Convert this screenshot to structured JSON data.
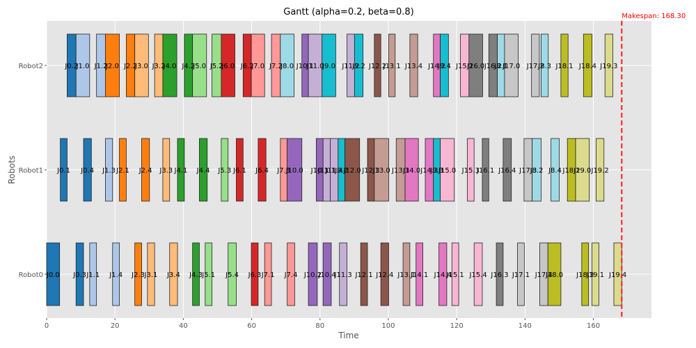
{
  "chart_data": {
    "type": "gantt",
    "title": "Gantt (alpha=0.2, beta=0.8)",
    "xlabel": "Time",
    "ylabel": "Robots",
    "xlim": [
      0,
      177
    ],
    "x_ticks": [
      0,
      20,
      40,
      60,
      80,
      100,
      120,
      140,
      160
    ],
    "grid": true,
    "robots": [
      "Robot0",
      "Robot1",
      "Robot2"
    ],
    "makespan": 168.3,
    "makespan_label": "Makespan: 168.30",
    "job_colors": {
      "J0": "#1f77b4",
      "J1": "#aec7e8",
      "J2": "#ff7f0e",
      "J3": "#ffbb78",
      "J4": "#2ca02c",
      "J5": "#98df8a",
      "J6": "#d62728",
      "J7": "#ff9896",
      "J8": "#9edae5",
      "J9": "#17becf",
      "J10": "#9467bd",
      "J11": "#c5b0d5",
      "J12": "#8c564b",
      "J13": "#c49c94",
      "J14": "#e377c2",
      "J15": "#f7b6d2",
      "J16": "#7f7f7f",
      "J17": "#c7c7c7",
      "J18": "#bcbd22",
      "J19": "#dbdb8d"
    },
    "tasks": [
      {
        "robot": "Robot0",
        "label": "J0.0",
        "job": "J0",
        "start": 0.0,
        "end": 3.8
      },
      {
        "robot": "Robot0",
        "label": "J0.3",
        "job": "J0",
        "start": 8.6,
        "end": 10.8
      },
      {
        "robot": "Robot0",
        "label": "J1.1",
        "job": "J1",
        "start": 12.6,
        "end": 14.6
      },
      {
        "robot": "Robot0",
        "label": "J1.4",
        "job": "J1",
        "start": 19.3,
        "end": 21.3
      },
      {
        "robot": "Robot0",
        "label": "J2.3",
        "job": "J2",
        "start": 25.8,
        "end": 27.8
      },
      {
        "robot": "Robot0",
        "label": "J3.1",
        "job": "J3",
        "start": 29.5,
        "end": 31.6
      },
      {
        "robot": "Robot0",
        "label": "J3.4",
        "job": "J3",
        "start": 36.0,
        "end": 38.3
      },
      {
        "robot": "Robot0",
        "label": "J4.3",
        "job": "J4",
        "start": 42.7,
        "end": 44.7
      },
      {
        "robot": "Robot0",
        "label": "J5.1",
        "job": "J5",
        "start": 46.4,
        "end": 48.4
      },
      {
        "robot": "Robot0",
        "label": "J5.4",
        "job": "J5",
        "start": 53.1,
        "end": 55.5
      },
      {
        "robot": "Robot0",
        "label": "J6.3",
        "job": "J6",
        "start": 59.9,
        "end": 61.9
      },
      {
        "robot": "Robot0",
        "label": "J7.1",
        "job": "J7",
        "start": 63.8,
        "end": 65.8
      },
      {
        "robot": "Robot0",
        "label": "J7.4",
        "job": "J7",
        "start": 70.4,
        "end": 72.6
      },
      {
        "robot": "Robot0",
        "label": "J10.2",
        "job": "J10",
        "start": 76.6,
        "end": 79.2
      },
      {
        "robot": "Robot0",
        "label": "J10.4",
        "job": "J10",
        "start": 80.9,
        "end": 83.3
      },
      {
        "robot": "Robot0",
        "label": "J11.3",
        "job": "J11",
        "start": 85.7,
        "end": 87.9
      },
      {
        "robot": "Robot0",
        "label": "J12.1",
        "job": "J12",
        "start": 91.9,
        "end": 93.9
      },
      {
        "robot": "Robot0",
        "label": "J12.4",
        "job": "J12",
        "start": 97.8,
        "end": 100.1
      },
      {
        "robot": "Robot0",
        "label": "J13.1",
        "job": "J13",
        "start": 104.3,
        "end": 106.3
      },
      {
        "robot": "Robot0",
        "label": "J14.1",
        "job": "J14",
        "start": 108.1,
        "end": 110.1
      },
      {
        "robot": "Robot0",
        "label": "J14.4",
        "job": "J14",
        "start": 114.8,
        "end": 117.1
      },
      {
        "robot": "Robot0",
        "label": "J15.1",
        "job": "J15",
        "start": 118.6,
        "end": 120.6
      },
      {
        "robot": "Robot0",
        "label": "J15.4",
        "job": "J15",
        "start": 125.1,
        "end": 127.5
      },
      {
        "robot": "Robot0",
        "label": "J16.3",
        "job": "J16",
        "start": 131.6,
        "end": 133.6
      },
      {
        "robot": "Robot0",
        "label": "J17.1",
        "job": "J17",
        "start": 137.8,
        "end": 139.8
      },
      {
        "robot": "Robot0",
        "label": "J17.4",
        "job": "J17",
        "start": 144.3,
        "end": 146.7
      },
      {
        "robot": "Robot0",
        "label": "J18.0",
        "job": "J18",
        "start": 146.7,
        "end": 150.5
      },
      {
        "robot": "Robot0",
        "label": "J18.3",
        "job": "J18",
        "start": 156.6,
        "end": 158.6
      },
      {
        "robot": "Robot0",
        "label": "J19.1",
        "job": "J19",
        "start": 159.6,
        "end": 161.6
      },
      {
        "robot": "Robot0",
        "label": "J19.4",
        "job": "J19",
        "start": 166.0,
        "end": 168.3
      },
      {
        "robot": "Robot1",
        "label": "J0.1",
        "job": "J0",
        "start": 4.0,
        "end": 6.0
      },
      {
        "robot": "Robot1",
        "label": "J0.4",
        "job": "J0",
        "start": 10.8,
        "end": 13.1
      },
      {
        "robot": "Robot1",
        "label": "J1.3",
        "job": "J1",
        "start": 17.2,
        "end": 19.3
      },
      {
        "robot": "Robot1",
        "label": "J2.1",
        "job": "J2",
        "start": 21.3,
        "end": 23.3
      },
      {
        "robot": "Robot1",
        "label": "J2.4",
        "job": "J2",
        "start": 27.8,
        "end": 30.1
      },
      {
        "robot": "Robot1",
        "label": "J3.3",
        "job": "J3",
        "start": 34.0,
        "end": 36.0
      },
      {
        "robot": "Robot1",
        "label": "J4.1",
        "job": "J4",
        "start": 38.3,
        "end": 40.3
      },
      {
        "robot": "Robot1",
        "label": "J4.4",
        "job": "J4",
        "start": 44.7,
        "end": 47.0
      },
      {
        "robot": "Robot1",
        "label": "J5.3",
        "job": "J5",
        "start": 51.1,
        "end": 53.1
      },
      {
        "robot": "Robot1",
        "label": "J6.1",
        "job": "J6",
        "start": 55.5,
        "end": 57.5
      },
      {
        "robot": "Robot1",
        "label": "J6.4",
        "job": "J6",
        "start": 61.9,
        "end": 64.2
      },
      {
        "robot": "Robot1",
        "label": "J7.3",
        "job": "J7",
        "start": 68.4,
        "end": 70.4
      },
      {
        "robot": "Robot1",
        "label": "J10.0",
        "job": "J10",
        "start": 70.4,
        "end": 74.7
      },
      {
        "robot": "Robot1",
        "label": "J10.3",
        "job": "J10",
        "start": 78.9,
        "end": 80.9
      },
      {
        "robot": "Robot1",
        "label": "J11.1",
        "job": "J11",
        "start": 80.9,
        "end": 83.0
      },
      {
        "robot": "Robot1",
        "label": "J11.4",
        "job": "J11",
        "start": 83.0,
        "end": 85.3
      },
      {
        "robot": "Robot1",
        "label": "J9.2",
        "job": "J9",
        "start": 85.3,
        "end": 87.3
      },
      {
        "robot": "Robot1",
        "label": "J12.0",
        "job": "J12",
        "start": 87.3,
        "end": 91.6
      },
      {
        "robot": "Robot1",
        "label": "J12.3",
        "job": "J12",
        "start": 93.9,
        "end": 95.9
      },
      {
        "robot": "Robot1",
        "label": "J13.0",
        "job": "J13",
        "start": 95.9,
        "end": 100.1
      },
      {
        "robot": "Robot1",
        "label": "J13.3",
        "job": "J13",
        "start": 102.3,
        "end": 104.9
      },
      {
        "robot": "Robot1",
        "label": "J14.0",
        "job": "J14",
        "start": 104.9,
        "end": 108.8
      },
      {
        "robot": "Robot1",
        "label": "J14.3",
        "job": "J14",
        "start": 110.8,
        "end": 113.2
      },
      {
        "robot": "Robot1",
        "label": "J9.3",
        "job": "J9",
        "start": 113.2,
        "end": 115.2
      },
      {
        "robot": "Robot1",
        "label": "J15.0",
        "job": "J15",
        "start": 115.2,
        "end": 119.3
      },
      {
        "robot": "Robot1",
        "label": "J15.3",
        "job": "J15",
        "start": 123.1,
        "end": 125.1
      },
      {
        "robot": "Robot1",
        "label": "J16.1",
        "job": "J16",
        "start": 127.5,
        "end": 129.4
      },
      {
        "robot": "Robot1",
        "label": "J16.4",
        "job": "J16",
        "start": 133.6,
        "end": 136.0
      },
      {
        "robot": "Robot1",
        "label": "J17.3",
        "job": "J17",
        "start": 139.7,
        "end": 142.1
      },
      {
        "robot": "Robot1",
        "label": "J8.2",
        "job": "J8",
        "start": 142.1,
        "end": 144.7
      },
      {
        "robot": "Robot1",
        "label": "J8.4",
        "job": "J8",
        "start": 147.6,
        "end": 150.0
      },
      {
        "robot": "Robot1",
        "label": "J18.2",
        "job": "J18",
        "start": 152.4,
        "end": 154.8
      },
      {
        "robot": "Robot1",
        "label": "J19.0",
        "job": "J19",
        "start": 154.8,
        "end": 158.8
      },
      {
        "robot": "Robot1",
        "label": "J19.2",
        "job": "J19",
        "start": 160.8,
        "end": 163.1
      },
      {
        "robot": "Robot2",
        "label": "J0.2",
        "job": "J0",
        "start": 6.0,
        "end": 8.6
      },
      {
        "robot": "Robot2",
        "label": "J1.0",
        "job": "J1",
        "start": 8.6,
        "end": 12.6
      },
      {
        "robot": "Robot2",
        "label": "J1.2",
        "job": "J1",
        "start": 14.6,
        "end": 17.2
      },
      {
        "robot": "Robot2",
        "label": "J2.0",
        "job": "J2",
        "start": 17.2,
        "end": 21.3
      },
      {
        "robot": "Robot2",
        "label": "J2.2",
        "job": "J2",
        "start": 23.3,
        "end": 25.8
      },
      {
        "robot": "Robot2",
        "label": "J3.0",
        "job": "J3",
        "start": 25.8,
        "end": 29.8
      },
      {
        "robot": "Robot2",
        "label": "J3.2",
        "job": "J3",
        "start": 31.6,
        "end": 34.0
      },
      {
        "robot": "Robot2",
        "label": "J4.0",
        "job": "J4",
        "start": 34.0,
        "end": 38.1
      },
      {
        "robot": "Robot2",
        "label": "J4.2",
        "job": "J4",
        "start": 40.3,
        "end": 42.7
      },
      {
        "robot": "Robot2",
        "label": "J5.0",
        "job": "J5",
        "start": 42.7,
        "end": 46.8
      },
      {
        "robot": "Robot2",
        "label": "J5.2",
        "job": "J5",
        "start": 48.4,
        "end": 51.1
      },
      {
        "robot": "Robot2",
        "label": "J6.0",
        "job": "J6",
        "start": 51.1,
        "end": 55.1
      },
      {
        "robot": "Robot2",
        "label": "J6.2",
        "job": "J6",
        "start": 57.5,
        "end": 59.9
      },
      {
        "robot": "Robot2",
        "label": "J7.0",
        "job": "J7",
        "start": 59.9,
        "end": 63.8
      },
      {
        "robot": "Robot2",
        "label": "J7.2",
        "job": "J7",
        "start": 65.8,
        "end": 68.4
      },
      {
        "robot": "Robot2",
        "label": "J8.0",
        "job": "J8",
        "start": 68.4,
        "end": 72.4
      },
      {
        "robot": "Robot2",
        "label": "J10.1",
        "job": "J10",
        "start": 74.7,
        "end": 76.6
      },
      {
        "robot": "Robot2",
        "label": "J11.0",
        "job": "J11",
        "start": 76.6,
        "end": 80.6
      },
      {
        "robot": "Robot2",
        "label": "J9.0",
        "job": "J9",
        "start": 80.6,
        "end": 84.6
      },
      {
        "robot": "Robot2",
        "label": "J11.2",
        "job": "J11",
        "start": 87.9,
        "end": 90.1
      },
      {
        "robot": "Robot2",
        "label": "J9.2",
        "job": "J9",
        "start": 90.1,
        "end": 92.6
      },
      {
        "robot": "Robot2",
        "label": "J12.2",
        "job": "J12",
        "start": 95.9,
        "end": 97.8
      },
      {
        "robot": "Robot2",
        "label": "J13.1",
        "job": "J13",
        "start": 100.1,
        "end": 102.0
      },
      {
        "robot": "Robot2",
        "label": "J13.4",
        "job": "J13",
        "start": 106.3,
        "end": 108.6
      },
      {
        "robot": "Robot2",
        "label": "J14.2",
        "job": "J14",
        "start": 113.2,
        "end": 115.2
      },
      {
        "robot": "Robot2",
        "label": "J9.4",
        "job": "J9",
        "start": 115.2,
        "end": 117.6
      },
      {
        "robot": "Robot2",
        "label": "J15.2",
        "job": "J15",
        "start": 121.1,
        "end": 123.6
      },
      {
        "robot": "Robot2",
        "label": "J16.0",
        "job": "J16",
        "start": 123.6,
        "end": 127.6
      },
      {
        "robot": "Robot2",
        "label": "J16.2",
        "job": "J16",
        "start": 129.4,
        "end": 131.9
      },
      {
        "robot": "Robot2",
        "label": "J8.1",
        "job": "J8",
        "start": 131.9,
        "end": 134.0
      },
      {
        "robot": "Robot2",
        "label": "J17.0",
        "job": "J17",
        "start": 134.0,
        "end": 138.0
      },
      {
        "robot": "Robot2",
        "label": "J17.2",
        "job": "J17",
        "start": 141.9,
        "end": 144.2
      },
      {
        "robot": "Robot2",
        "label": "J8.3",
        "job": "J8",
        "start": 144.7,
        "end": 146.8
      },
      {
        "robot": "Robot2",
        "label": "J18.1",
        "job": "J18",
        "start": 150.5,
        "end": 152.6
      },
      {
        "robot": "Robot2",
        "label": "J18.4",
        "job": "J18",
        "start": 157.1,
        "end": 159.6
      },
      {
        "robot": "Robot2",
        "label": "J19.3",
        "job": "J19",
        "start": 163.4,
        "end": 165.7
      }
    ]
  }
}
